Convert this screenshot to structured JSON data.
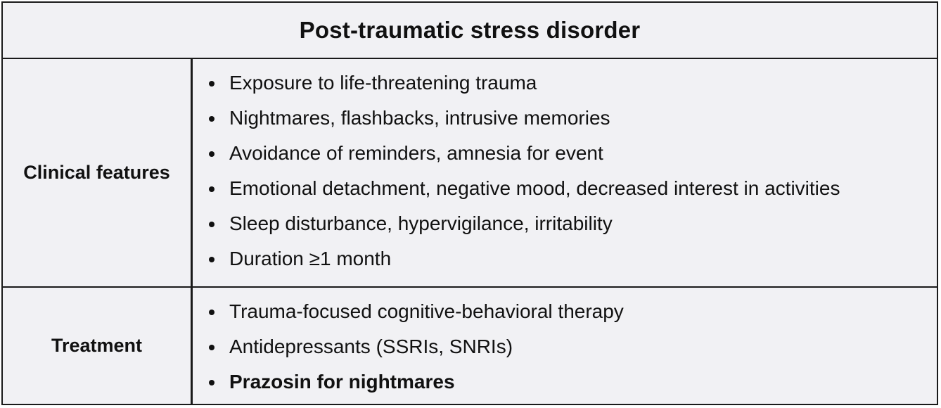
{
  "title": "Post-traumatic stress disorder",
  "rows": [
    {
      "label": "Clinical features",
      "items": [
        {
          "text": "Exposure to life-threatening trauma",
          "bold": false
        },
        {
          "text": "Nightmares, flashbacks, intrusive memories",
          "bold": false
        },
        {
          "text": "Avoidance of reminders, amnesia for event",
          "bold": false
        },
        {
          "text": "Emotional detachment, negative mood, decreased interest in activities",
          "bold": false
        },
        {
          "text": "Sleep disturbance, hypervigilance, irritability",
          "bold": false
        },
        {
          "text": "Duration ≥1 month",
          "bold": false
        }
      ]
    },
    {
      "label": "Treatment",
      "items": [
        {
          "text": "Trauma-focused cognitive-behavioral therapy",
          "bold": false
        },
        {
          "text": "Antidepressants (SSRIs, SNRIs)",
          "bold": false
        },
        {
          "text": "Prazosin for nightmares",
          "bold": true
        }
      ]
    }
  ],
  "colors": {
    "background": "#f1f1f4",
    "border": "#1a1a1a",
    "text": "#111111"
  }
}
